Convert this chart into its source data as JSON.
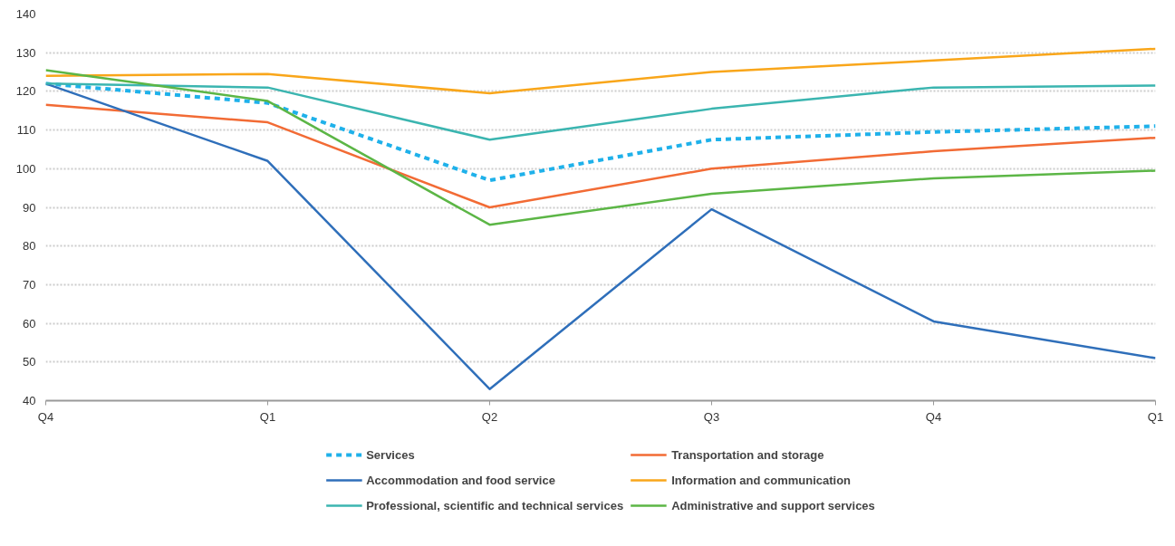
{
  "chart_data": {
    "type": "line",
    "categories": [
      "Q4",
      "Q1",
      "Q2",
      "Q3",
      "Q4",
      "Q1"
    ],
    "series": [
      {
        "name": "Services",
        "color": "#1fb1ea",
        "line_style": "dashed",
        "values": [
          122,
          117,
          97,
          107.5,
          109.5,
          111
        ]
      },
      {
        "name": "Transportation and storage",
        "color": "#f26b35",
        "values": [
          116.5,
          112,
          90,
          100,
          104.5,
          108
        ]
      },
      {
        "name": "Accommodation and food service",
        "color": "#2f6fba",
        "values": [
          122,
          102,
          43,
          89.5,
          60.5,
          51
        ]
      },
      {
        "name": "Information and communication",
        "color": "#f9a61a",
        "values": [
          124,
          124.5,
          119.5,
          125,
          128,
          131
        ]
      },
      {
        "name": "Professional, scientific and technical services",
        "color": "#3bb5b0",
        "values": [
          122,
          121,
          107.5,
          115.5,
          121,
          121.5
        ]
      },
      {
        "name": "Administrative and support services",
        "color": "#5cb646",
        "values": [
          125.5,
          117.5,
          85.5,
          93.5,
          97.5,
          99.5
        ]
      }
    ],
    "ylim": [
      40,
      140
    ],
    "yticks": [
      40,
      50,
      60,
      70,
      80,
      90,
      100,
      110,
      120,
      130,
      140
    ],
    "grid": "y",
    "legend": "bottom",
    "line_style": "solid"
  }
}
